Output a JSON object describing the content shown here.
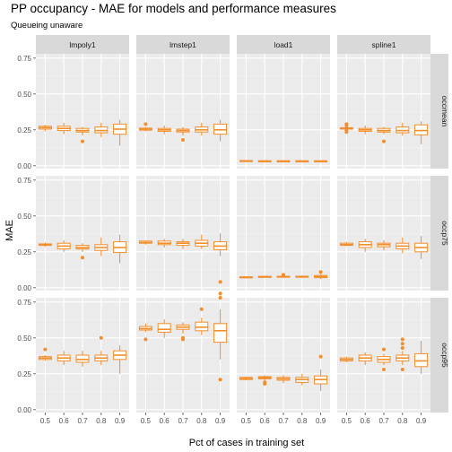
{
  "chart_data": {
    "type": "boxplot",
    "title": "PP occupancy - MAE for models and performance measures",
    "subtitle": "Queueing unaware",
    "xlabel": "Pct of cases in training set",
    "ylabel": "MAE",
    "x_categories": [
      "0.5",
      "0.6",
      "0.7",
      "0.8",
      "0.9"
    ],
    "y_ticks": [
      "0.00",
      "0.25",
      "0.50",
      "0.75"
    ],
    "ylim": [
      -0.02,
      0.78
    ],
    "grid": true,
    "box_color": "#f28e2b",
    "panel_background": "#ebebeb",
    "strip_background": "#d9d9d9",
    "columns": [
      "lmpoly1",
      "lmstep1",
      "load1",
      "spline1"
    ],
    "rows": [
      "occmean",
      "occp75",
      "occp95"
    ],
    "panels": [
      {
        "row": "occmean",
        "col": "lmpoly1",
        "boxes": [
          {
            "x": "0.5",
            "lo": 0.24,
            "q1": 0.255,
            "med": 0.265,
            "q3": 0.275,
            "hi": 0.285,
            "out": []
          },
          {
            "x": "0.6",
            "lo": 0.22,
            "q1": 0.245,
            "med": 0.26,
            "q3": 0.275,
            "hi": 0.3,
            "out": []
          },
          {
            "x": "0.7",
            "lo": 0.21,
            "q1": 0.235,
            "med": 0.245,
            "q3": 0.26,
            "hi": 0.27,
            "out": [
              0.17
            ]
          },
          {
            "x": "0.8",
            "lo": 0.2,
            "q1": 0.23,
            "med": 0.245,
            "q3": 0.27,
            "hi": 0.3,
            "out": []
          },
          {
            "x": "0.9",
            "lo": 0.14,
            "q1": 0.22,
            "med": 0.255,
            "q3": 0.29,
            "hi": 0.32,
            "out": []
          }
        ]
      },
      {
        "row": "occmean",
        "col": "lmstep1",
        "boxes": [
          {
            "x": "0.5",
            "lo": 0.24,
            "q1": 0.248,
            "med": 0.255,
            "q3": 0.262,
            "hi": 0.27,
            "out": [
              0.29
            ]
          },
          {
            "x": "0.6",
            "lo": 0.22,
            "q1": 0.24,
            "med": 0.25,
            "q3": 0.26,
            "hi": 0.28,
            "out": []
          },
          {
            "x": "0.7",
            "lo": 0.21,
            "q1": 0.235,
            "med": 0.245,
            "q3": 0.255,
            "hi": 0.27,
            "out": [
              0.18
            ]
          },
          {
            "x": "0.8",
            "lo": 0.21,
            "q1": 0.235,
            "med": 0.25,
            "q3": 0.27,
            "hi": 0.3,
            "out": []
          },
          {
            "x": "0.9",
            "lo": 0.17,
            "q1": 0.22,
            "med": 0.25,
            "q3": 0.29,
            "hi": 0.32,
            "out": []
          }
        ]
      },
      {
        "row": "occmean",
        "col": "load1",
        "boxes": [
          {
            "x": "0.5",
            "lo": 0.03,
            "q1": 0.032,
            "med": 0.034,
            "q3": 0.036,
            "hi": 0.038,
            "out": []
          },
          {
            "x": "0.6",
            "lo": 0.031,
            "q1": 0.032,
            "med": 0.033,
            "q3": 0.034,
            "hi": 0.035,
            "out": []
          },
          {
            "x": "0.7",
            "lo": 0.031,
            "q1": 0.032,
            "med": 0.033,
            "q3": 0.034,
            "hi": 0.035,
            "out": []
          },
          {
            "x": "0.8",
            "lo": 0.031,
            "q1": 0.032,
            "med": 0.033,
            "q3": 0.034,
            "hi": 0.035,
            "out": []
          },
          {
            "x": "0.9",
            "lo": 0.031,
            "q1": 0.032,
            "med": 0.033,
            "q3": 0.034,
            "hi": 0.035,
            "out": []
          }
        ]
      },
      {
        "row": "occmean",
        "col": "spline1",
        "boxes": [
          {
            "x": "0.5",
            "lo": 0.25,
            "q1": 0.255,
            "med": 0.26,
            "q3": 0.265,
            "hi": 0.27,
            "out": [
              0.235,
              0.245,
              0.28,
              0.29
            ]
          },
          {
            "x": "0.6",
            "lo": 0.22,
            "q1": 0.24,
            "med": 0.25,
            "q3": 0.26,
            "hi": 0.28,
            "out": []
          },
          {
            "x": "0.7",
            "lo": 0.22,
            "q1": 0.235,
            "med": 0.245,
            "q3": 0.26,
            "hi": 0.27,
            "out": [
              0.17
            ]
          },
          {
            "x": "0.8",
            "lo": 0.21,
            "q1": 0.23,
            "med": 0.245,
            "q3": 0.27,
            "hi": 0.3,
            "out": []
          },
          {
            "x": "0.9",
            "lo": 0.15,
            "q1": 0.215,
            "med": 0.245,
            "q3": 0.285,
            "hi": 0.31,
            "out": []
          }
        ]
      },
      {
        "row": "occp75",
        "col": "lmpoly1",
        "boxes": [
          {
            "x": "0.5",
            "lo": 0.285,
            "q1": 0.295,
            "med": 0.3,
            "q3": 0.305,
            "hi": 0.315,
            "out": []
          },
          {
            "x": "0.6",
            "lo": 0.25,
            "q1": 0.27,
            "med": 0.29,
            "q3": 0.31,
            "hi": 0.33,
            "out": []
          },
          {
            "x": "0.7",
            "lo": 0.25,
            "q1": 0.27,
            "med": 0.28,
            "q3": 0.295,
            "hi": 0.31,
            "out": [
              0.21
            ]
          },
          {
            "x": "0.8",
            "lo": 0.22,
            "q1": 0.26,
            "med": 0.28,
            "q3": 0.3,
            "hi": 0.35,
            "out": []
          },
          {
            "x": "0.9",
            "lo": 0.17,
            "q1": 0.245,
            "med": 0.28,
            "q3": 0.32,
            "hi": 0.37,
            "out": []
          }
        ]
      },
      {
        "row": "occp75",
        "col": "lmstep1",
        "boxes": [
          {
            "x": "0.5",
            "lo": 0.3,
            "q1": 0.31,
            "med": 0.315,
            "q3": 0.325,
            "hi": 0.33,
            "out": []
          },
          {
            "x": "0.6",
            "lo": 0.28,
            "q1": 0.3,
            "med": 0.31,
            "q3": 0.325,
            "hi": 0.34,
            "out": []
          },
          {
            "x": "0.7",
            "lo": 0.27,
            "q1": 0.295,
            "med": 0.31,
            "q3": 0.32,
            "hi": 0.34,
            "out": []
          },
          {
            "x": "0.8",
            "lo": 0.27,
            "q1": 0.29,
            "med": 0.31,
            "q3": 0.33,
            "hi": 0.37,
            "out": []
          },
          {
            "x": "0.9",
            "lo": 0.22,
            "q1": 0.265,
            "med": 0.29,
            "q3": 0.32,
            "hi": 0.38,
            "out": []
          }
        ]
      },
      {
        "row": "occp75",
        "col": "load1",
        "boxes": [
          {
            "x": "0.5",
            "lo": 0.065,
            "q1": 0.07,
            "med": 0.073,
            "q3": 0.076,
            "hi": 0.08,
            "out": []
          },
          {
            "x": "0.6",
            "lo": 0.072,
            "q1": 0.075,
            "med": 0.077,
            "q3": 0.079,
            "hi": 0.082,
            "out": []
          },
          {
            "x": "0.7",
            "lo": 0.072,
            "q1": 0.075,
            "med": 0.078,
            "q3": 0.08,
            "hi": 0.085,
            "out": [
              0.09
            ]
          },
          {
            "x": "0.8",
            "lo": 0.07,
            "q1": 0.074,
            "med": 0.077,
            "q3": 0.08,
            "hi": 0.085,
            "out": []
          },
          {
            "x": "0.9",
            "lo": 0.06,
            "q1": 0.07,
            "med": 0.077,
            "q3": 0.085,
            "hi": 0.095,
            "out": [
              0.11
            ]
          }
        ]
      },
      {
        "row": "occp75",
        "col": "spline1",
        "boxes": [
          {
            "x": "0.5",
            "lo": 0.29,
            "q1": 0.295,
            "med": 0.3,
            "q3": 0.31,
            "hi": 0.32,
            "out": []
          },
          {
            "x": "0.6",
            "lo": 0.25,
            "q1": 0.28,
            "med": 0.3,
            "q3": 0.32,
            "hi": 0.34,
            "out": []
          },
          {
            "x": "0.7",
            "lo": 0.26,
            "q1": 0.285,
            "med": 0.3,
            "q3": 0.31,
            "hi": 0.33,
            "out": []
          },
          {
            "x": "0.8",
            "lo": 0.24,
            "q1": 0.27,
            "med": 0.29,
            "q3": 0.31,
            "hi": 0.35,
            "out": []
          },
          {
            "x": "0.9",
            "lo": 0.2,
            "q1": 0.25,
            "med": 0.28,
            "q3": 0.31,
            "hi": 0.36,
            "out": []
          }
        ]
      },
      {
        "row": "occp95",
        "col": "lmpoly1",
        "boxes": [
          {
            "x": "0.5",
            "lo": 0.34,
            "q1": 0.35,
            "med": 0.36,
            "q3": 0.37,
            "hi": 0.38,
            "out": [
              0.42
            ]
          },
          {
            "x": "0.6",
            "lo": 0.31,
            "q1": 0.34,
            "med": 0.36,
            "q3": 0.38,
            "hi": 0.41,
            "out": []
          },
          {
            "x": "0.7",
            "lo": 0.3,
            "q1": 0.33,
            "med": 0.35,
            "q3": 0.38,
            "hi": 0.41,
            "out": []
          },
          {
            "x": "0.8",
            "lo": 0.31,
            "q1": 0.34,
            "med": 0.36,
            "q3": 0.38,
            "hi": 0.41,
            "out": [
              0.5
            ]
          },
          {
            "x": "0.9",
            "lo": 0.25,
            "q1": 0.35,
            "med": 0.38,
            "q3": 0.41,
            "hi": 0.45,
            "out": []
          }
        ]
      },
      {
        "row": "occp95",
        "col": "lmstep1",
        "boxes": [
          {
            "x": "0.5",
            "lo": 0.54,
            "q1": 0.555,
            "med": 0.565,
            "q3": 0.58,
            "hi": 0.6,
            "out": [
              0.49
            ]
          },
          {
            "x": "0.6",
            "lo": 0.5,
            "q1": 0.54,
            "med": 0.56,
            "q3": 0.6,
            "hi": 0.63,
            "out": []
          },
          {
            "x": "0.7",
            "lo": 0.53,
            "q1": 0.56,
            "med": 0.575,
            "q3": 0.59,
            "hi": 0.61,
            "out": [
              0.49,
              0.5
            ]
          },
          {
            "x": "0.8",
            "lo": 0.52,
            "q1": 0.55,
            "med": 0.575,
            "q3": 0.61,
            "hi": 0.64,
            "out": [
              0.7
            ]
          },
          {
            "x": "0.9",
            "lo": 0.35,
            "q1": 0.47,
            "med": 0.55,
            "q3": 0.6,
            "hi": 0.7,
            "out": [
              0.21,
              0.78,
              0.81,
              0.89
            ]
          }
        ]
      },
      {
        "row": "occp95",
        "col": "load1",
        "boxes": [
          {
            "x": "0.5",
            "lo": 0.205,
            "q1": 0.21,
            "med": 0.218,
            "q3": 0.225,
            "hi": 0.23,
            "out": []
          },
          {
            "x": "0.6",
            "lo": 0.2,
            "q1": 0.215,
            "med": 0.222,
            "q3": 0.23,
            "hi": 0.24,
            "out": [
              0.18,
              0.19
            ]
          },
          {
            "x": "0.7",
            "lo": 0.185,
            "q1": 0.205,
            "med": 0.215,
            "q3": 0.225,
            "hi": 0.24,
            "out": []
          },
          {
            "x": "0.8",
            "lo": 0.17,
            "q1": 0.19,
            "med": 0.21,
            "q3": 0.225,
            "hi": 0.25,
            "out": []
          },
          {
            "x": "0.9",
            "lo": 0.13,
            "q1": 0.18,
            "med": 0.21,
            "q3": 0.235,
            "hi": 0.28,
            "out": [
              0.37
            ]
          }
        ]
      },
      {
        "row": "occp95",
        "col": "spline1",
        "boxes": [
          {
            "x": "0.5",
            "lo": 0.33,
            "q1": 0.34,
            "med": 0.35,
            "q3": 0.36,
            "hi": 0.37,
            "out": []
          },
          {
            "x": "0.6",
            "lo": 0.31,
            "q1": 0.34,
            "med": 0.36,
            "q3": 0.38,
            "hi": 0.4,
            "out": []
          },
          {
            "x": "0.7",
            "lo": 0.31,
            "q1": 0.33,
            "med": 0.35,
            "q3": 0.37,
            "hi": 0.39,
            "out": [
              0.28,
              0.42
            ]
          },
          {
            "x": "0.8",
            "lo": 0.31,
            "q1": 0.34,
            "med": 0.36,
            "q3": 0.38,
            "hi": 0.41,
            "out": [
              0.28,
              0.43,
              0.46,
              0.49
            ]
          },
          {
            "x": "0.9",
            "lo": 0.25,
            "q1": 0.3,
            "med": 0.34,
            "q3": 0.39,
            "hi": 0.48,
            "out": []
          }
        ]
      }
    ]
  }
}
